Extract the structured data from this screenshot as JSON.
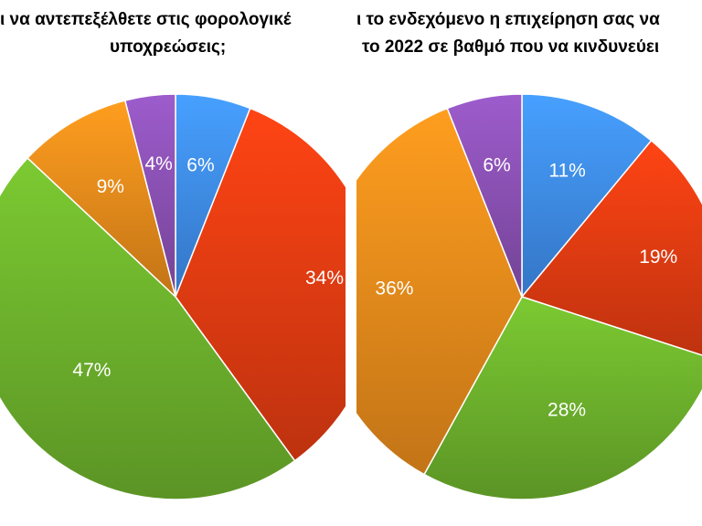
{
  "colors": {
    "blue": "#3f8ff0",
    "red": "#e63d12",
    "green": "#6fb42d",
    "orange": "#ec8d1c",
    "purple": "#8c52b6"
  },
  "charts": [
    {
      "title_lines": [
        "ι να αντεπεξέλθετε στις φορολογικέ",
        "υποχρεώσεις;"
      ]
    },
    {
      "title_lines": [
        "ι το ενδεχόμενο η επιχείρηση σας να",
        "το 2022 σε βαθμό που να κινδυνεύει"
      ]
    }
  ],
  "chart_data": [
    {
      "type": "pie",
      "values": [
        6,
        34,
        47,
        9,
        4
      ],
      "labels": [
        "6%",
        "34%",
        "47%",
        "9%",
        "4%"
      ],
      "colors": [
        "#3f8ff0",
        "#e63d12",
        "#6fb42d",
        "#ec8d1c",
        "#8c52b6"
      ]
    },
    {
      "type": "pie",
      "values": [
        11,
        19,
        28,
        36,
        6
      ],
      "labels": [
        "11%",
        "19%",
        "28%",
        "36%",
        "6%"
      ],
      "colors": [
        "#3f8ff0",
        "#e63d12",
        "#6fb42d",
        "#ec8d1c",
        "#8c52b6"
      ]
    }
  ]
}
